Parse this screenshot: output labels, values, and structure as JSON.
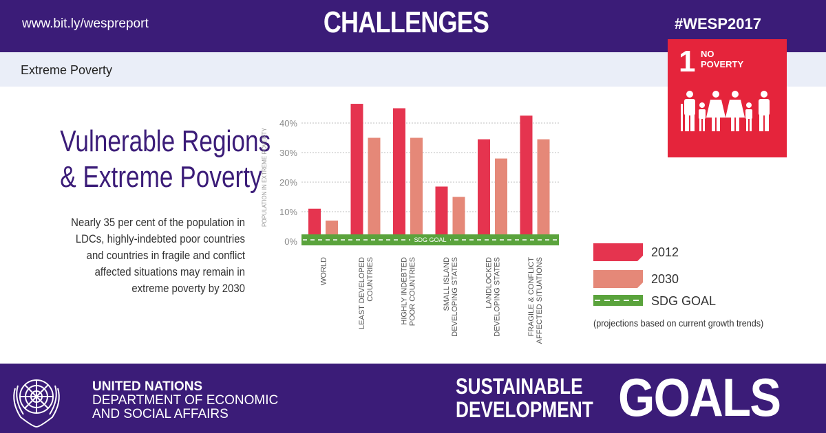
{
  "header": {
    "url": "www.bit.ly/wespreport",
    "title": "CHALLENGES",
    "hashtag": "#WESP2017"
  },
  "subheader": {
    "label": "Extreme Poverty"
  },
  "sdg_tile": {
    "number": "1",
    "name_line1": "NO",
    "name_line2": "POVERTY",
    "icon": "family-icon",
    "color": "#e5243b"
  },
  "headline": {
    "line1": "Vulnerable Regions",
    "line2": "& Extreme Poverty"
  },
  "body": {
    "lines": [
      "Nearly 35 per cent of the population in",
      "LDCs, highly-indebted poor countries",
      "and countries in fragile and conflict",
      "affected situations may remain in",
      "extreme poverty by 2030"
    ]
  },
  "chart_data": {
    "type": "bar",
    "ylabel": "POPULATION IN EXTREME POVERTY",
    "ylim": [
      0,
      45
    ],
    "yticks": [
      "0%",
      "10%",
      "20%",
      "30%",
      "40%"
    ],
    "grid": true,
    "categories": [
      [
        "WORLD"
      ],
      [
        "LEAST DEVELOPED",
        "COUNTRIES"
      ],
      [
        "HIGHLY INDEBTED",
        "POOR COUNTRIES"
      ],
      [
        "SMALL ISLAND",
        "DEVELOPING STATES"
      ],
      [
        "LANDLOCKED",
        "DEVELOPING STATES"
      ],
      [
        "FRAGILE & CONFLICT",
        "AFFECTED SITUATIONS"
      ]
    ],
    "series": [
      {
        "name": "2012",
        "values": [
          11,
          46.5,
          45,
          18.5,
          34.5,
          42.5
        ],
        "color": "#e5344f"
      },
      {
        "name": "2030",
        "values": [
          7,
          35,
          35,
          15,
          28,
          34.5
        ],
        "color": "#e58878"
      }
    ],
    "goal_line": {
      "label": "SDG GOAL",
      "value": 0,
      "color": "#5aa33c"
    },
    "legend": {
      "position": "right",
      "items": [
        "2012",
        "2030",
        "SDG GOAL"
      ],
      "note": "(projections based on current growth trends)"
    }
  },
  "footer": {
    "org_line1": "UNITED NATIONS",
    "org_line2": "DEPARTMENT OF ECONOMIC",
    "org_line3": "AND SOCIAL AFFAIRS",
    "logo_line1": "SUSTAINABLE",
    "logo_line2": "DEVELOPMENT",
    "logo_word": "GOALS",
    "emblem_icon": "un-emblem-icon"
  },
  "colors": {
    "brand_purple": "#3b1c78",
    "light_band": "#eaeef8"
  }
}
